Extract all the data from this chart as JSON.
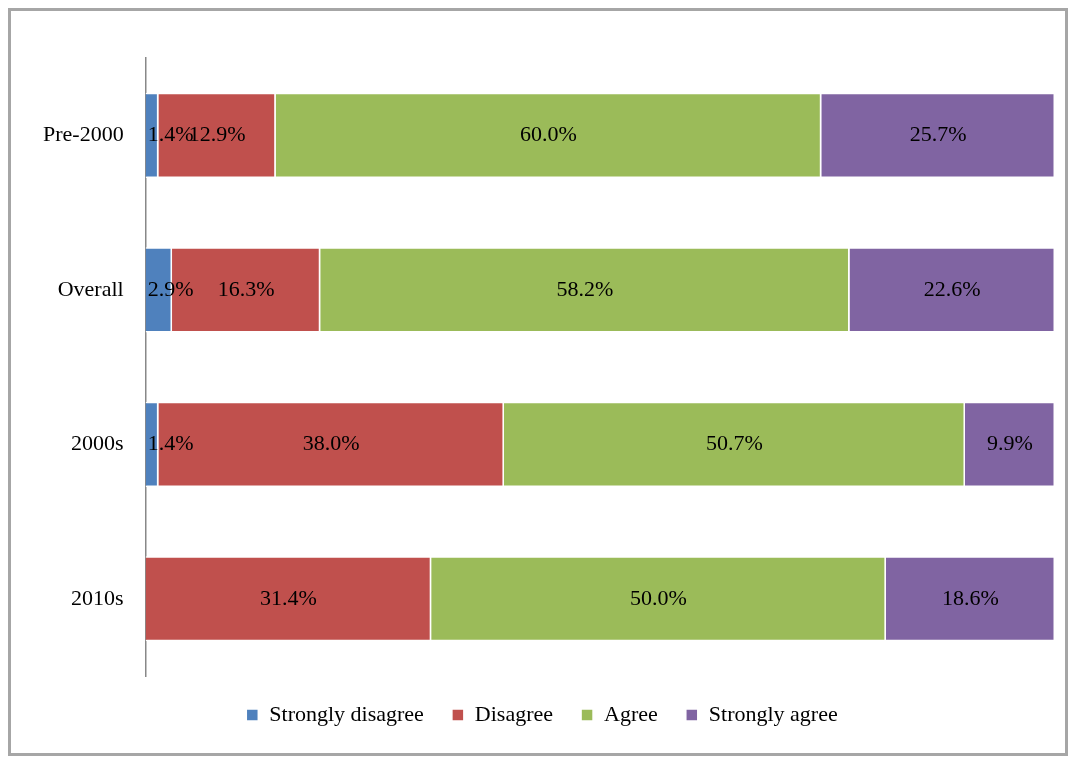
{
  "chart_data": {
    "type": "bar",
    "orientation": "horizontal",
    "stacked": true,
    "categories": [
      "Pre-2000",
      "Overall",
      "2000s",
      "2010s"
    ],
    "xlim": [
      0,
      100
    ],
    "tick_labels": "y",
    "grid": false,
    "legend": "bottom",
    "series": [
      {
        "name": "Strongly disagree",
        "color": "#4f81bd",
        "values": [
          1.4,
          2.9,
          1.4,
          0
        ],
        "value_labels": [
          "1.4%",
          "2.9%",
          "1.4%",
          null
        ]
      },
      {
        "name": "Disagree",
        "color": "#c0504d",
        "values": [
          12.9,
          16.3,
          38.0,
          31.4
        ],
        "value_labels": [
          "12.9%",
          "16.3%",
          "38.0%",
          "31.4%"
        ]
      },
      {
        "name": "Agree",
        "color": "#9bbb59",
        "values": [
          60.0,
          58.2,
          50.7,
          50.0
        ],
        "value_labels": [
          "60.0%",
          "58.2%",
          "50.7%",
          "50.0%"
        ]
      },
      {
        "name": "Strongly agree",
        "color": "#8064a2",
        "values": [
          25.7,
          22.6,
          9.9,
          18.6
        ],
        "value_labels": [
          "25.7%",
          "22.6%",
          "9.9%",
          "18.6%"
        ]
      }
    ]
  }
}
